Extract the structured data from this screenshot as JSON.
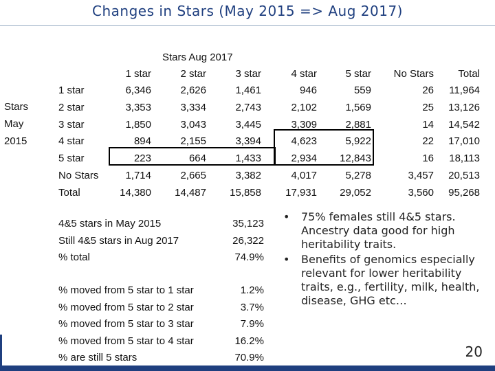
{
  "title": "Changes in Stars (May 2015 => Aug 2017)",
  "table": {
    "col_group_label": "Stars Aug 2017",
    "row_group_label": [
      "Stars",
      "May",
      "2015"
    ],
    "columns": [
      "1 star",
      "2 star",
      "3 star",
      "4 star",
      "5 star",
      "No Stars",
      "Total"
    ],
    "rows": [
      {
        "label": "1 star",
        "values": [
          "6,346",
          "2,626",
          "1,461",
          "946",
          "559",
          "26",
          "11,964"
        ]
      },
      {
        "label": "2 star",
        "values": [
          "3,353",
          "3,334",
          "2,743",
          "2,102",
          "1,569",
          "25",
          "13,126"
        ]
      },
      {
        "label": "3 star",
        "values": [
          "1,850",
          "3,043",
          "3,445",
          "3,309",
          "2,881",
          "14",
          "14,542"
        ]
      },
      {
        "label": "4 star",
        "values": [
          "894",
          "2,155",
          "3,394",
          "4,623",
          "5,922",
          "22",
          "17,010"
        ]
      },
      {
        "label": "5 star",
        "values": [
          "223",
          "664",
          "1,433",
          "2,934",
          "12,843",
          "16",
          "18,113"
        ]
      },
      {
        "label": "No Stars",
        "values": [
          "1,714",
          "2,665",
          "3,382",
          "4,017",
          "5,278",
          "3,457",
          "20,513"
        ]
      },
      {
        "label": "Total",
        "values": [
          "14,380",
          "14,487",
          "15,858",
          "17,931",
          "29,052",
          "3,560",
          "95,268"
        ]
      }
    ]
  },
  "summary1": [
    {
      "label": "4&5 stars in May 2015",
      "value": "35,123"
    },
    {
      "label": "Still 4&5 stars in Aug 2017",
      "value": "26,322"
    },
    {
      "label": "% total",
      "value": "74.9%"
    }
  ],
  "summary2": [
    {
      "label": "% moved from 5 star to 1 star",
      "value": "1.2%"
    },
    {
      "label": "% moved from 5 star to 2 star",
      "value": "3.7%"
    },
    {
      "label": "% moved from 5 star to 3 star",
      "value": "7.9%"
    },
    {
      "label": "% moved from 5 star to 4 star",
      "value": "16.2%"
    },
    {
      "label": "% are still 5 stars",
      "value": "70.9%"
    }
  ],
  "bullets": [
    "75% females still 4&5 stars. Ancestry data good for high heritability traits.",
    "Benefits of genomics especially relevant for lower heritability traits, e.g., fertility, milk, health, disease, GHG  etc…"
  ],
  "bullet_marker": "•",
  "page_number": "20"
}
